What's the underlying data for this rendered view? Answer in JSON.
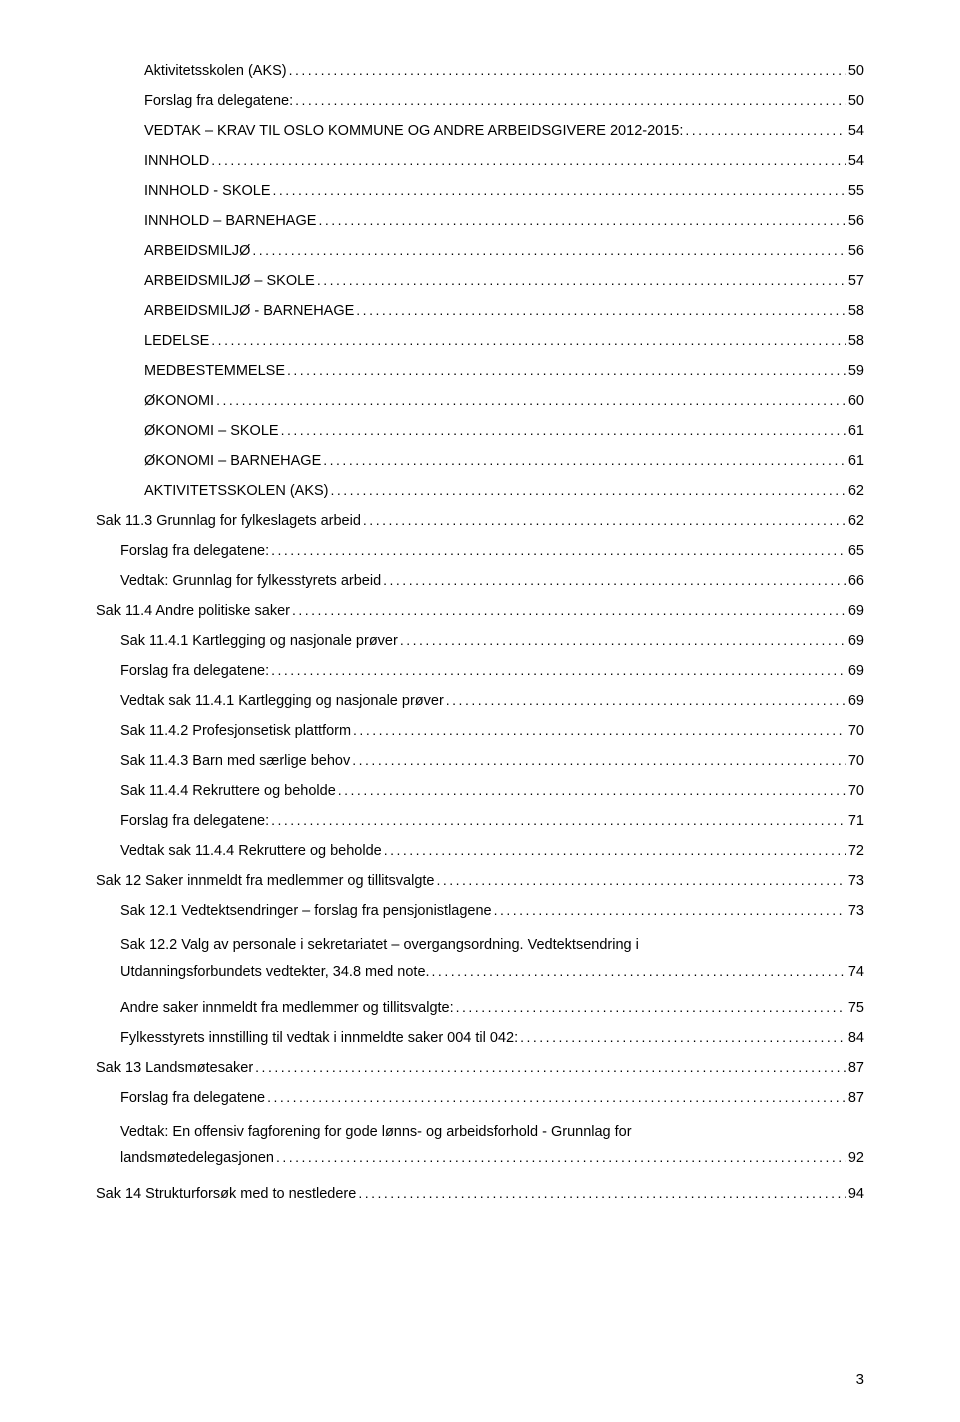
{
  "pageNumber": "3",
  "entries": [
    {
      "indent": 2,
      "text": "Aktivitetsskolen (AKS)",
      "page": "50"
    },
    {
      "indent": 2,
      "text": "Forslag fra delegatene:",
      "page": "50"
    },
    {
      "indent": 2,
      "text": "VEDTAK – KRAV TIL OSLO KOMMUNE OG ANDRE ARBEIDSGIVERE 2012-2015:",
      "page": "54"
    },
    {
      "indent": 2,
      "text": "INNHOLD",
      "page": "54"
    },
    {
      "indent": 2,
      "text": "INNHOLD - SKOLE",
      "page": "55"
    },
    {
      "indent": 2,
      "text": "INNHOLD – BARNEHAGE",
      "page": "56"
    },
    {
      "indent": 2,
      "text": "ARBEIDSMILJØ",
      "page": "56"
    },
    {
      "indent": 2,
      "text": "ARBEIDSMILJØ – SKOLE",
      "page": "57"
    },
    {
      "indent": 2,
      "text": "ARBEIDSMILJØ - BARNEHAGE",
      "page": "58"
    },
    {
      "indent": 2,
      "text": "LEDELSE",
      "page": "58"
    },
    {
      "indent": 2,
      "text": "MEDBESTEMMELSE",
      "page": "59"
    },
    {
      "indent": 2,
      "text": "ØKONOMI",
      "page": "60"
    },
    {
      "indent": 2,
      "text": "ØKONOMI – SKOLE",
      "page": "61"
    },
    {
      "indent": 2,
      "text": "ØKONOMI – BARNEHAGE",
      "page": "61"
    },
    {
      "indent": 2,
      "text": "AKTIVITETSSKOLEN (AKS)",
      "page": "62"
    },
    {
      "indent": 0,
      "text": "Sak 11.3 Grunnlag for fylkeslagets arbeid",
      "page": "62"
    },
    {
      "indent": 1,
      "text": "Forslag fra delegatene:",
      "page": "65"
    },
    {
      "indent": 1,
      "text": "Vedtak: Grunnlag for fylkesstyrets arbeid",
      "page": "66"
    },
    {
      "indent": 0,
      "text": "Sak 11.4 Andre politiske saker",
      "page": "69"
    },
    {
      "indent": 1,
      "text": "Sak 11.4.1 Kartlegging og nasjonale prøver",
      "page": "69"
    },
    {
      "indent": 1,
      "text": "Forslag fra delegatene:",
      "page": "69"
    },
    {
      "indent": 1,
      "text": "Vedtak sak 11.4.1 Kartlegging og nasjonale prøver",
      "page": "69"
    },
    {
      "indent": 1,
      "text": "Sak 11.4.2 Profesjonsetisk plattform",
      "page": "70"
    },
    {
      "indent": 1,
      "text": "Sak 11.4.3 Barn med særlige behov",
      "page": "70"
    },
    {
      "indent": 1,
      "text": "Sak 11.4.4 Rekruttere og beholde",
      "page": "70"
    },
    {
      "indent": 1,
      "text": "Forslag fra delegatene:",
      "page": "71"
    },
    {
      "indent": 1,
      "text": "Vedtak sak 11.4.4 Rekruttere og beholde",
      "page": "72"
    },
    {
      "indent": 0,
      "text": "Sak 12 Saker innmeldt fra medlemmer og tillitsvalgte",
      "page": "73"
    },
    {
      "indent": 1,
      "text": "Sak 12.1 Vedtektsendringer – forslag fra pensjonistlagene",
      "page": "73"
    },
    {
      "indent": 1,
      "text": "Sak 12.2 Valg av personale i sekretariatet – overgangsordning. Vedtektsendring i Utdanningsforbundets vedtekter, 34.8 med note.",
      "page": "74",
      "wrap": true
    },
    {
      "indent": 1,
      "text": "Andre saker innmeldt fra medlemmer og tillitsvalgte:",
      "page": "75"
    },
    {
      "indent": 1,
      "text": "Fylkesstyrets innstilling til vedtak i innmeldte saker 004 til 042:",
      "page": "84"
    },
    {
      "indent": 0,
      "text": "Sak 13 Landsmøtesaker",
      "page": "87"
    },
    {
      "indent": 1,
      "text": "Forslag fra delegatene",
      "page": "87"
    },
    {
      "indent": 1,
      "text": "Vedtak: En offensiv fagforening for gode lønns- og arbeidsforhold - Grunnlag for landsmøtedelegasjonen",
      "page": "92",
      "wrap": true
    },
    {
      "indent": 0,
      "text": "Sak 14 Strukturforsøk med to nestledere",
      "page": "94"
    }
  ]
}
